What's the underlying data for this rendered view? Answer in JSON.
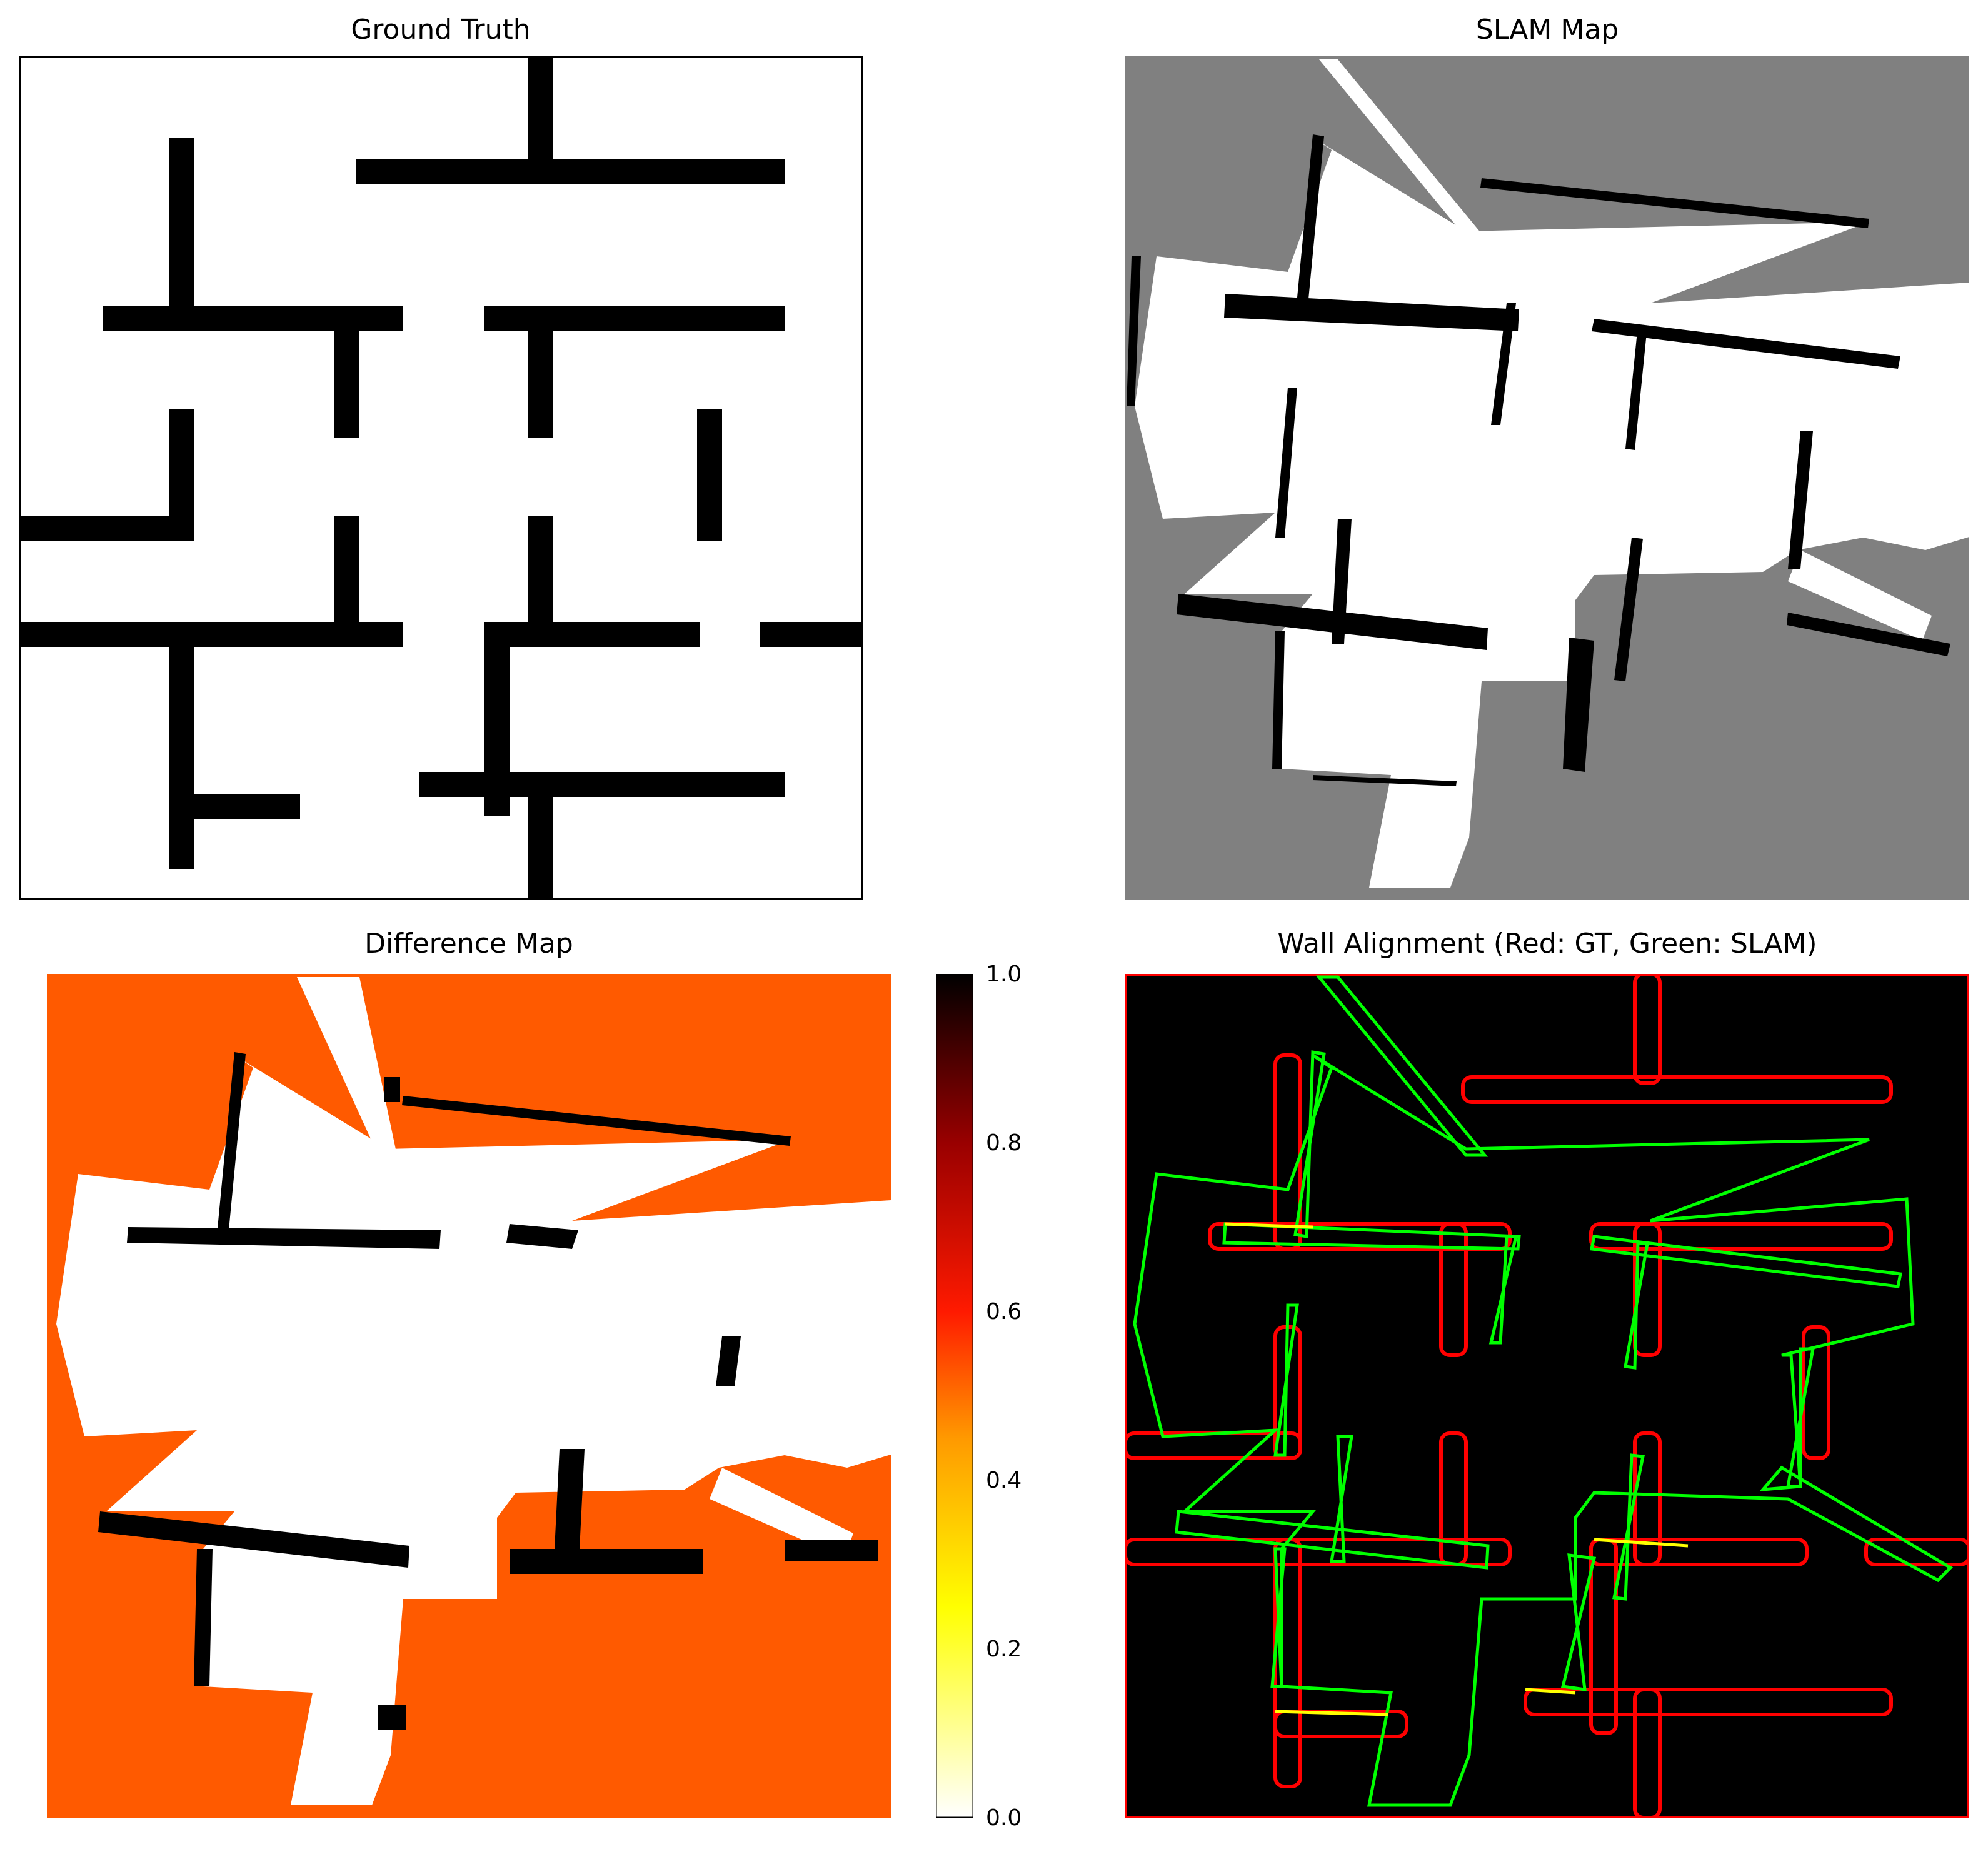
{
  "panels": {
    "ground_truth": {
      "title": "Ground Truth"
    },
    "slam_map": {
      "title": "SLAM Map"
    },
    "difference_map": {
      "title": "Difference Map"
    },
    "wall_alignment": {
      "title": "Wall Alignment (Red: GT, Green: SLAM)"
    }
  },
  "colorbar": {
    "ticks": [
      "0.0",
      "0.2",
      "0.4",
      "0.6",
      "0.8",
      "1.0"
    ],
    "colormap": "hot_r"
  },
  "colors": {
    "wall": "#000000",
    "free": "#ffffff",
    "unknown": "#808080",
    "diff_unknown": "#ff5a00",
    "gt_outline": "#ff0000",
    "slam_outline": "#00ff00",
    "overlap": "#ffff00"
  }
}
